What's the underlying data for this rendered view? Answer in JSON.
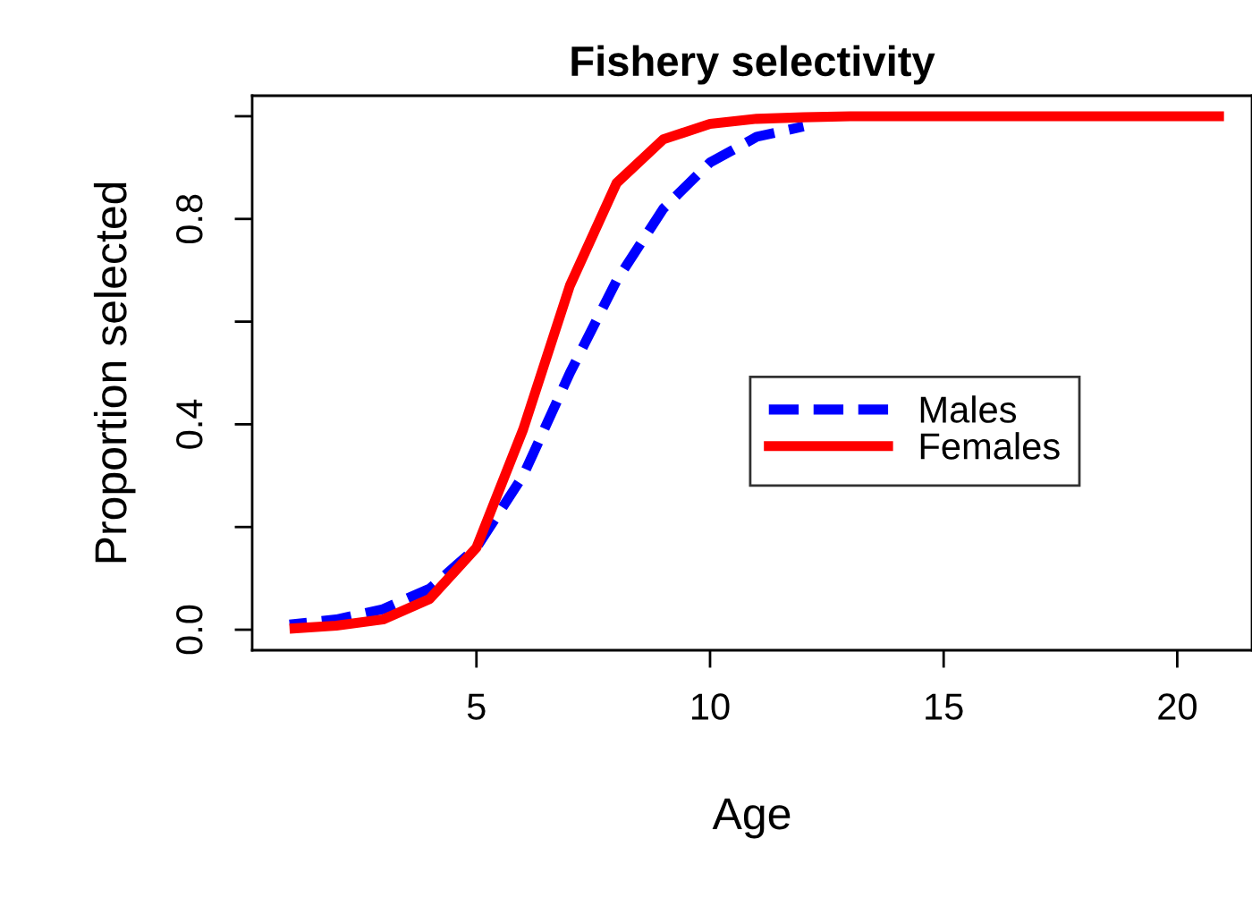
{
  "chart_data": {
    "type": "line",
    "title": "Fishery selectivity",
    "xlabel": "Age",
    "ylabel": "Proportion selected",
    "x": [
      1,
      2,
      3,
      4,
      5,
      6,
      7,
      8,
      9,
      10,
      11,
      12,
      13,
      14,
      15,
      16,
      17,
      18,
      19,
      20,
      21
    ],
    "series": [
      {
        "name": "Males",
        "color": "#0000ff",
        "line_style": "dashed",
        "values": [
          0.01,
          0.02,
          0.04,
          0.08,
          0.16,
          0.3,
          0.5,
          0.68,
          0.82,
          0.91,
          0.96,
          0.98,
          null,
          null,
          null,
          null,
          null,
          null,
          null,
          null,
          null
        ]
      },
      {
        "name": "Females",
        "color": "#ff0000",
        "line_style": "solid",
        "values": [
          0.002,
          0.008,
          0.02,
          0.06,
          0.16,
          0.39,
          0.67,
          0.87,
          0.955,
          0.985,
          0.995,
          0.998,
          1,
          1,
          1,
          1,
          1,
          1,
          1,
          1,
          1
        ]
      }
    ],
    "xlim": [
      0.2,
      21.6
    ],
    "ylim": [
      -0.04,
      1.04
    ],
    "xticks": [
      5,
      10,
      15,
      20
    ],
    "yticks": [
      {
        "value": 0.0,
        "label": "0.0"
      },
      {
        "value": 0.2,
        "label": null
      },
      {
        "value": 0.4,
        "label": "0.4"
      },
      {
        "value": 0.6,
        "label": null
      },
      {
        "value": 0.8,
        "label": "0.8"
      },
      {
        "value": 1.0,
        "label": null
      }
    ],
    "grid": false,
    "legend": "right",
    "marker": "none"
  }
}
